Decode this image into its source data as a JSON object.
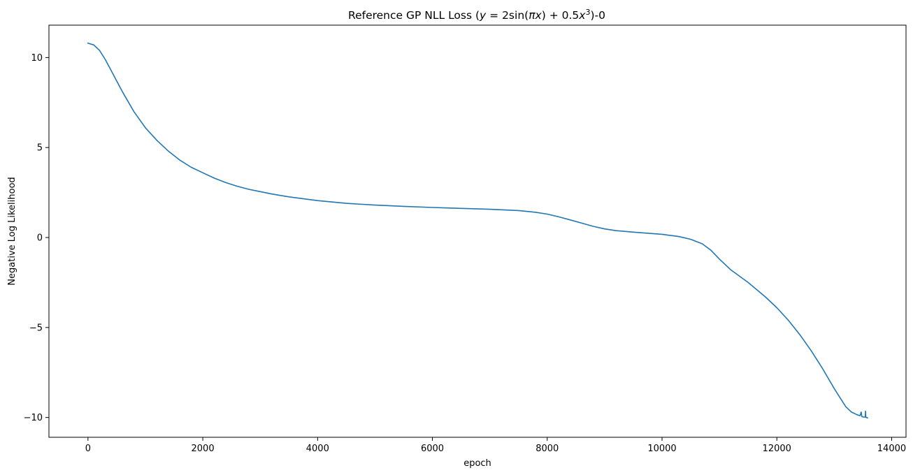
{
  "chart_data": {
    "type": "line",
    "title": "Reference GP NLL Loss ($y=2\\sin(\\pi x)+0.5x^3$)-0",
    "title_parts": {
      "prefix": "Reference GP NLL Loss (",
      "math_y": "y",
      "math_eq": " = 2sin(",
      "math_pi": "π",
      "math_x1": "x",
      "math_mid": ") + 0.5",
      "math_x2": "x",
      "math_exp": "3",
      "suffix": ")-0"
    },
    "xlabel": "epoch",
    "ylabel": "Negative Log Likelihood",
    "xlim": [
      -680,
      14250
    ],
    "ylim": [
      -11.1,
      11.8
    ],
    "xticks": [
      0,
      2000,
      4000,
      6000,
      8000,
      10000,
      12000,
      14000
    ],
    "xtick_labels": [
      "0",
      "2000",
      "4000",
      "6000",
      "8000",
      "10000",
      "12000",
      "14000"
    ],
    "yticks": [
      -10,
      -5,
      0,
      5,
      10
    ],
    "ytick_labels": [
      "−10",
      "−5",
      "0",
      "5",
      "10"
    ],
    "grid": false,
    "line_color": "#1f77b4",
    "series": [
      {
        "x": [
          0,
          100,
          200,
          300,
          400,
          500,
          600,
          800,
          1000,
          1200,
          1400,
          1600,
          1800,
          2000,
          2200,
          2400,
          2600,
          2800,
          3000,
          3200,
          3500,
          4000,
          4500,
          5000,
          5500,
          6000,
          6500,
          7000,
          7500,
          7800,
          8000,
          8200,
          8400,
          8600,
          8800,
          9000,
          9200,
          9500,
          10000,
          10300,
          10500,
          10700,
          10850,
          11000,
          11200,
          11500,
          11800,
          12000,
          12200,
          12400,
          12600,
          12800,
          13000,
          13200,
          13300,
          13400,
          13450,
          13470,
          13480,
          13500,
          13520,
          13540,
          13545,
          13550,
          13560,
          13580
        ],
        "y": [
          10.8,
          10.7,
          10.4,
          9.9,
          9.3,
          8.7,
          8.1,
          7.0,
          6.1,
          5.4,
          4.8,
          4.3,
          3.9,
          3.6,
          3.3,
          3.05,
          2.85,
          2.68,
          2.55,
          2.42,
          2.26,
          2.05,
          1.9,
          1.8,
          1.73,
          1.67,
          1.62,
          1.57,
          1.5,
          1.4,
          1.3,
          1.15,
          0.98,
          0.8,
          0.62,
          0.48,
          0.38,
          0.3,
          0.18,
          0.05,
          -0.1,
          -0.35,
          -0.7,
          -1.2,
          -1.8,
          -2.5,
          -3.3,
          -3.9,
          -4.6,
          -5.4,
          -6.3,
          -7.3,
          -8.4,
          -9.4,
          -9.7,
          -9.85,
          -9.9,
          -9.7,
          -9.95,
          -9.97,
          -9.98,
          -9.98,
          -9.65,
          -9.98,
          -10.0,
          -10.02
        ]
      }
    ]
  }
}
